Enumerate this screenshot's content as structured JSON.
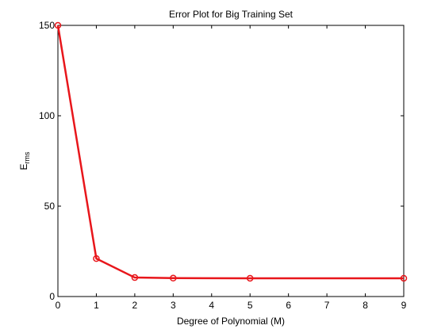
{
  "chart_data": {
    "type": "line",
    "title": "Error Plot for Big Training Set",
    "xlabel": "Degree of Polynomial (M)",
    "ylabel_main": "E",
    "ylabel_sub": "rms",
    "xlim": [
      0,
      9
    ],
    "ylim": [
      0,
      150
    ],
    "xticks": [
      0,
      1,
      2,
      3,
      4,
      5,
      6,
      7,
      8,
      9
    ],
    "yticks": [
      0,
      50,
      100,
      150
    ],
    "grid": false,
    "series": [
      {
        "color": "#e8161b",
        "marker": "circle",
        "points": [
          {
            "x": 0,
            "y": 150
          },
          {
            "x": 1,
            "y": 21
          },
          {
            "x": 2,
            "y": 10.5
          },
          {
            "x": 3,
            "y": 10.2
          },
          {
            "x": 5,
            "y": 10.1
          },
          {
            "x": 9,
            "y": 10.1
          }
        ]
      }
    ]
  }
}
